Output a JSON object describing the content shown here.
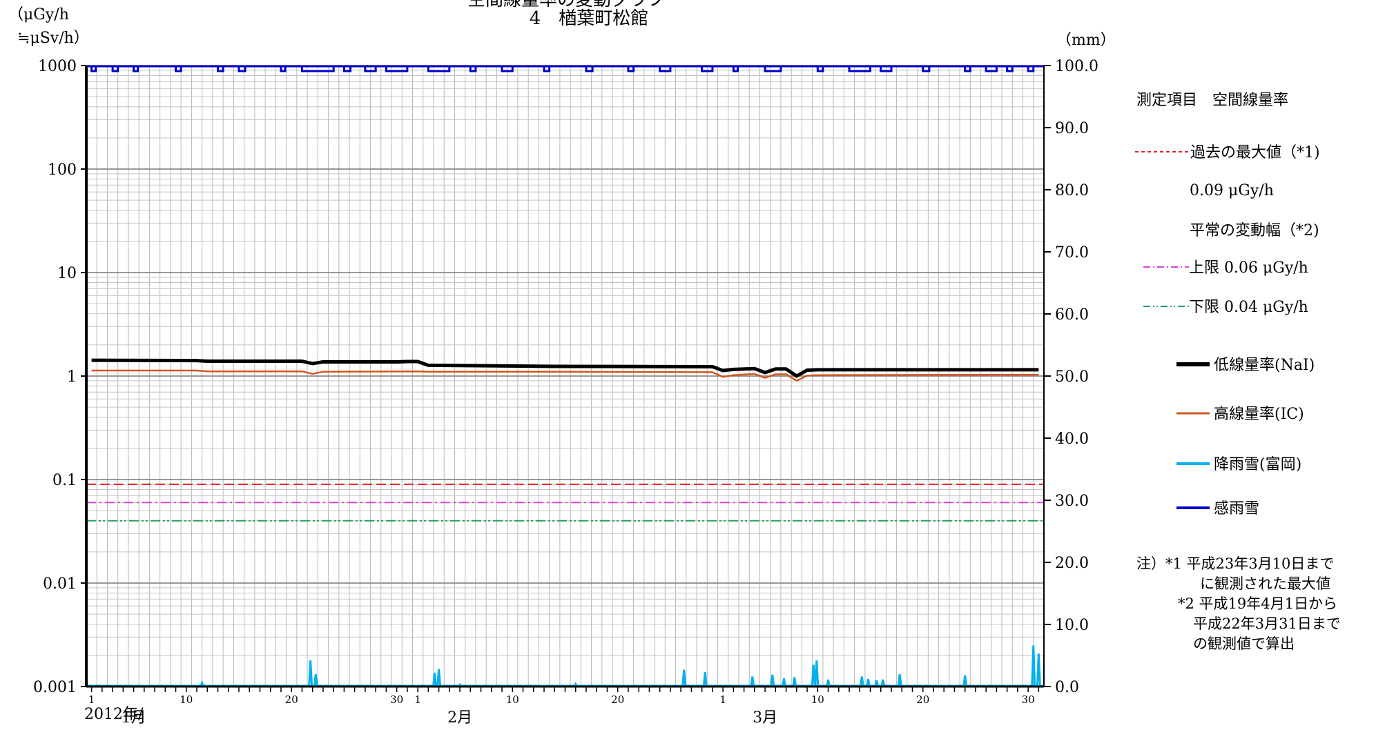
{
  "title": {
    "line1": "空間線量率の変動グラフ",
    "line2": "4　楢葉町松館"
  },
  "left_unit": [
    "（μGy/h",
    "≒μSv/h）"
  ],
  "right_unit": "（mm）",
  "year_label": "2012年/",
  "chart_data": {
    "type": "line",
    "x_axis": {
      "start": "2012-01-01",
      "end": "2012-03-31",
      "months": [
        {
          "label": "1月",
          "days": 31,
          "ticks": [
            "1",
            "10",
            "20",
            "30"
          ]
        },
        {
          "label": "2月",
          "days": 29,
          "ticks": [
            "1",
            "10",
            "20"
          ]
        },
        {
          "label": "3月",
          "days": 31,
          "ticks": [
            "1",
            "10",
            "20",
            "30"
          ]
        }
      ]
    },
    "y_left": {
      "scale": "log",
      "range": [
        0.001,
        1000
      ],
      "tick_labels": [
        "0.001",
        "0.01",
        "0.1",
        "1",
        "10",
        "100",
        "1000"
      ]
    },
    "y_right": {
      "scale": "linear",
      "range": [
        0,
        100
      ],
      "tick_labels": [
        "0.0",
        "10.0",
        "20.0",
        "30.0",
        "40.0",
        "50.0",
        "60.0",
        "70.0",
        "80.0",
        "90.0",
        "100.0"
      ]
    },
    "grid": true,
    "series": [
      {
        "name": "低線量率(NaI)",
        "axis": "left",
        "color": "#000000",
        "points": [
          [
            1,
            1.42
          ],
          [
            11,
            1.41
          ],
          [
            12,
            1.39
          ],
          [
            21,
            1.39
          ],
          [
            22,
            1.32
          ],
          [
            23,
            1.37
          ],
          [
            30,
            1.37
          ],
          [
            31,
            1.38
          ],
          [
            32,
            1.38
          ],
          [
            33,
            1.27
          ],
          [
            45,
            1.24
          ],
          [
            60,
            1.23
          ],
          [
            61,
            1.13
          ],
          [
            62,
            1.16
          ],
          [
            64,
            1.18
          ],
          [
            65,
            1.08
          ],
          [
            66,
            1.17
          ],
          [
            67,
            1.17
          ],
          [
            68,
            1.0
          ],
          [
            69,
            1.14
          ],
          [
            70,
            1.15
          ],
          [
            76,
            1.15
          ],
          [
            91,
            1.15
          ]
        ]
      },
      {
        "name": "高線量率(IC)",
        "axis": "left",
        "color": "#d2561e",
        "points": [
          [
            1,
            1.13
          ],
          [
            11,
            1.13
          ],
          [
            12,
            1.11
          ],
          [
            21,
            1.11
          ],
          [
            22,
            1.05
          ],
          [
            23,
            1.1
          ],
          [
            32,
            1.11
          ],
          [
            33,
            1.1
          ],
          [
            45,
            1.1
          ],
          [
            60,
            1.09
          ],
          [
            61,
            0.98
          ],
          [
            62,
            1.02
          ],
          [
            64,
            1.05
          ],
          [
            65,
            0.96
          ],
          [
            66,
            1.04
          ],
          [
            67,
            1.04
          ],
          [
            68,
            0.9
          ],
          [
            69,
            1.01
          ],
          [
            70,
            1.02
          ],
          [
            91,
            1.03
          ]
        ]
      },
      {
        "name": "降雨雪(富岡)",
        "axis": "right",
        "color": "#00b0f0",
        "points": [
          [
            11.5,
            0.6
          ],
          [
            21.8,
            4.2
          ],
          [
            22.3,
            2.0
          ],
          [
            33.6,
            2.2
          ],
          [
            34,
            2.8
          ],
          [
            36,
            0.3
          ],
          [
            47,
            0.4
          ],
          [
            57.3,
            2.7
          ],
          [
            59.3,
            2.3
          ],
          [
            63.8,
            1.6
          ],
          [
            65.7,
            1.9
          ],
          [
            66.8,
            1.3
          ],
          [
            67.8,
            1.5
          ],
          [
            69.6,
            3.5
          ],
          [
            69.9,
            4.2
          ],
          [
            71,
            1.1
          ],
          [
            74.2,
            1.6
          ],
          [
            74.8,
            1.2
          ],
          [
            75.6,
            1.0
          ],
          [
            76.2,
            1.1
          ],
          [
            77.8,
            2.0
          ],
          [
            84,
            1.8
          ],
          [
            90.5,
            6.6
          ],
          [
            91,
            5.3
          ]
        ]
      },
      {
        "name": "感雨雪",
        "axis": "right",
        "color": "#0000cc",
        "points": []
      }
    ],
    "reference_lines": [
      {
        "name": "過去の最大値",
        "value": 0.09,
        "color": "#e02020",
        "style": "dashed"
      },
      {
        "name": "上限",
        "value": 0.06,
        "color": "#e040e0",
        "style": "dash-dot"
      },
      {
        "name": "下限",
        "value": 0.04,
        "color": "#20a060",
        "style": "dash-dot-dot"
      }
    ]
  },
  "legend": {
    "heading": "測定項目　空間線量率",
    "max_label": "過去の最大値（*1)",
    "max_value": "0.09 μGy/h",
    "range_label": "平常の変動幅（*2)",
    "upper": "上限 0.06 μGy/h",
    "lower": "下限 0.04 μGy/h",
    "series_labels": [
      "低線量率(NaI)",
      "高線量率(IC)",
      "降雨雪(富岡)",
      "感雨雪"
    ]
  },
  "notes": [
    "注）*1 平成23年3月10日まで",
    "に観測された最大値",
    "*2 平成19年4月1日から",
    "平成22年3月31日まで",
    "の観測値で算出"
  ]
}
